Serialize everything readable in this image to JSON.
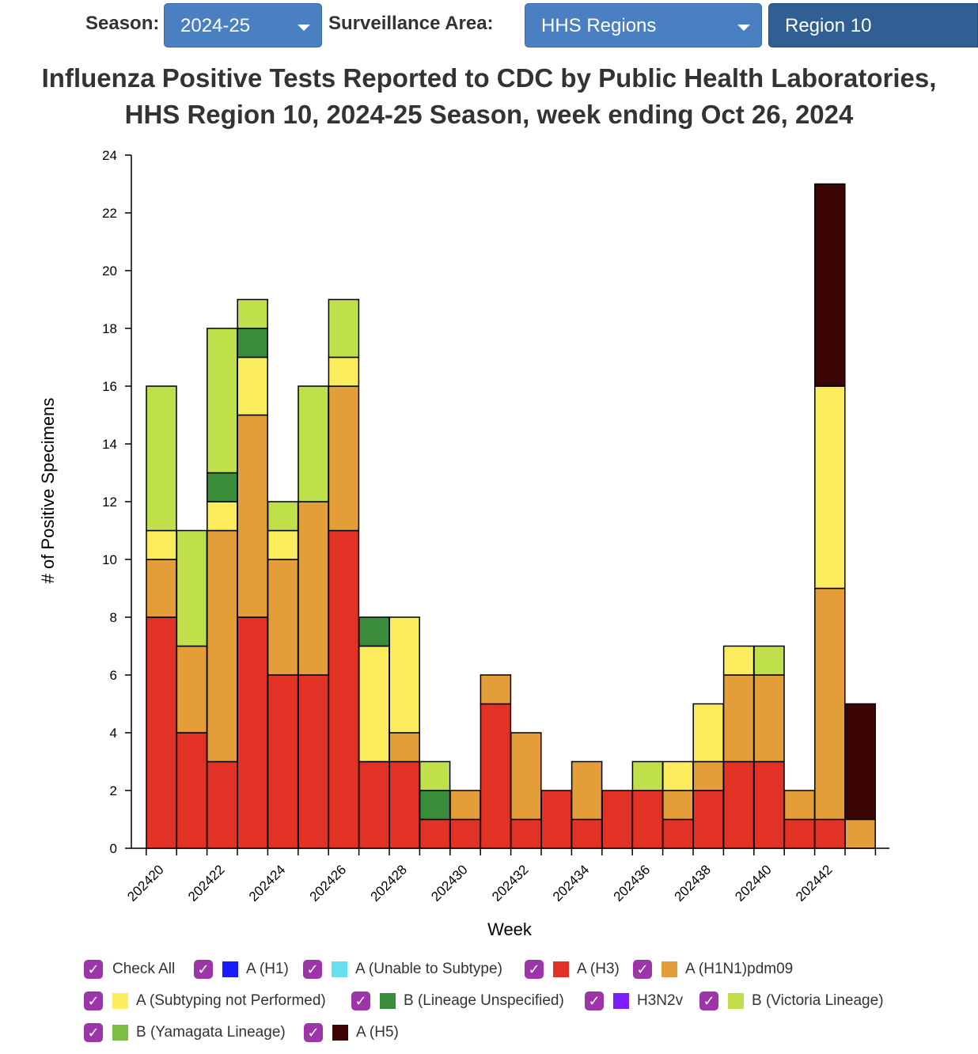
{
  "controls": {
    "season_label": "Season:",
    "season_value": "2024-25",
    "area_label": "Surveillance Area:",
    "area_value": "HHS Regions",
    "region_value": "Region 10"
  },
  "title_line1": "Influenza Positive Tests Reported to CDC by Public Health Laboratories,",
  "title_line2": "HHS Region 10, 2024-25 Season, week ending Oct 26, 2024",
  "legend": {
    "check_all": "Check All",
    "items": [
      {
        "label": "A (H1)",
        "color": "#1a1aff"
      },
      {
        "label": "A (Unable to Subtype)",
        "color": "#66e0ee"
      },
      {
        "label": "A (H3)",
        "color": "#e23226"
      },
      {
        "label": "A (H1N1)pdm09",
        "color": "#e39e3a"
      },
      {
        "label": "A (Subtyping not Performed)",
        "color": "#fbec5d"
      },
      {
        "label": "B (Lineage Unspecified)",
        "color": "#3a8c3a"
      },
      {
        "label": "H3N2v",
        "color": "#7b1fff"
      },
      {
        "label": "B (Victoria Lineage)",
        "color": "#bfe04a"
      },
      {
        "label": "B (Yamagata Lineage)",
        "color": "#7bbd45"
      },
      {
        "label": "A (H5)",
        "color": "#3c0606"
      }
    ]
  },
  "chart_data": {
    "type": "bar",
    "stacked": true,
    "xlabel": "Week",
    "ylabel": "# of Positive Specimens",
    "ylim": [
      0,
      24
    ],
    "yticks": [
      0,
      2,
      4,
      6,
      8,
      10,
      12,
      14,
      16,
      18,
      20,
      22,
      24
    ],
    "categories": [
      "202420",
      "202421",
      "202422",
      "202423",
      "202424",
      "202425",
      "202426",
      "202427",
      "202428",
      "202429",
      "202430",
      "202431",
      "202432",
      "202433",
      "202434",
      "202435",
      "202436",
      "202437",
      "202438",
      "202439",
      "202440",
      "202441",
      "202442",
      "202443"
    ],
    "tick_labels": [
      "202420",
      "202422",
      "202424",
      "202426",
      "202428",
      "202430",
      "202432",
      "202434",
      "202436",
      "202438",
      "202440",
      "202442"
    ],
    "series": [
      {
        "name": "A (H3)",
        "color": "#e23226",
        "values": [
          8,
          4,
          3,
          8,
          6,
          6,
          11,
          3,
          3,
          1,
          1,
          5,
          1,
          2,
          1,
          2,
          2,
          1,
          2,
          3,
          3,
          1,
          1,
          0
        ]
      },
      {
        "name": "A (H1N1)pdm09",
        "color": "#e39e3a",
        "values": [
          2,
          3,
          8,
          7,
          4,
          6,
          5,
          0,
          1,
          0,
          1,
          1,
          3,
          0,
          2,
          0,
          0,
          1,
          1,
          3,
          3,
          1,
          8,
          1
        ]
      },
      {
        "name": "A (Subtyping not Performed)",
        "color": "#fbec5d",
        "values": [
          1,
          0,
          1,
          2,
          1,
          0,
          1,
          4,
          4,
          0,
          0,
          0,
          0,
          0,
          0,
          0,
          0,
          1,
          2,
          1,
          0,
          0,
          7,
          0
        ]
      },
      {
        "name": "B (Lineage Unspecified)",
        "color": "#3a8c3a",
        "values": [
          0,
          0,
          1,
          1,
          0,
          0,
          0,
          1,
          0,
          1,
          0,
          0,
          0,
          0,
          0,
          0,
          0,
          0,
          0,
          0,
          0,
          0,
          0,
          0
        ]
      },
      {
        "name": "B (Victoria Lineage)",
        "color": "#bfe04a",
        "values": [
          5,
          4,
          5,
          1,
          1,
          4,
          2,
          0,
          0,
          1,
          0,
          0,
          0,
          0,
          0,
          0,
          1,
          0,
          0,
          0,
          1,
          0,
          0,
          0
        ]
      },
      {
        "name": "A (H5)",
        "color": "#3c0606",
        "values": [
          0,
          0,
          0,
          0,
          0,
          0,
          0,
          0,
          0,
          0,
          0,
          0,
          0,
          0,
          0,
          0,
          0,
          0,
          0,
          0,
          0,
          0,
          7,
          4
        ]
      }
    ]
  }
}
